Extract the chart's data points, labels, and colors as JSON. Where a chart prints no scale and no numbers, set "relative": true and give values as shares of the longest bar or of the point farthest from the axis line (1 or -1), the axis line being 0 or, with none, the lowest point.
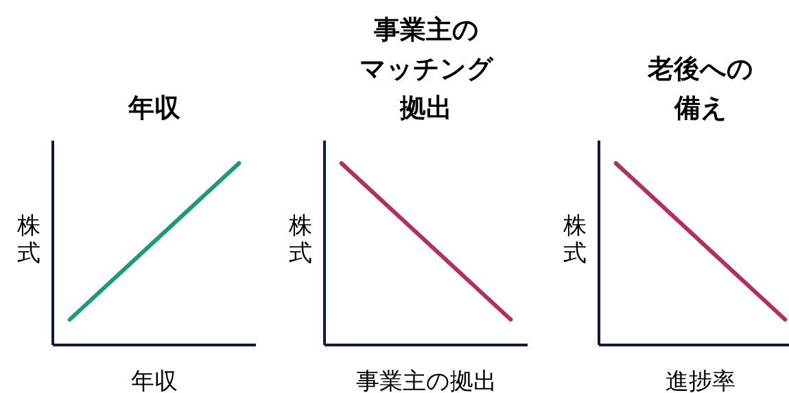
{
  "chart_data": [
    {
      "type": "line",
      "title": "年収",
      "xlabel": "年収",
      "ylabel": "株式",
      "relative": true,
      "categories": [
        null,
        null
      ],
      "series": [
        {
          "color": "#1e9a78",
          "values": [
            0.14,
            1
          ]
        }
      ]
    },
    {
      "type": "line",
      "title": "事業主のマッチング拠出",
      "xlabel": "事業主の拠出",
      "ylabel": "株式",
      "relative": true,
      "categories": [
        null,
        null
      ],
      "series": [
        {
          "color": "#b0305f",
          "values": [
            1,
            0.14
          ]
        }
      ]
    },
    {
      "type": "line",
      "title": "老後への備え",
      "xlabel": "進捗率",
      "ylabel": "株式",
      "relative": true,
      "categories": [
        null,
        null
      ],
      "series": [
        {
          "color": "#b0305f",
          "values": [
            1,
            0.14
          ]
        }
      ]
    }
  ]
}
